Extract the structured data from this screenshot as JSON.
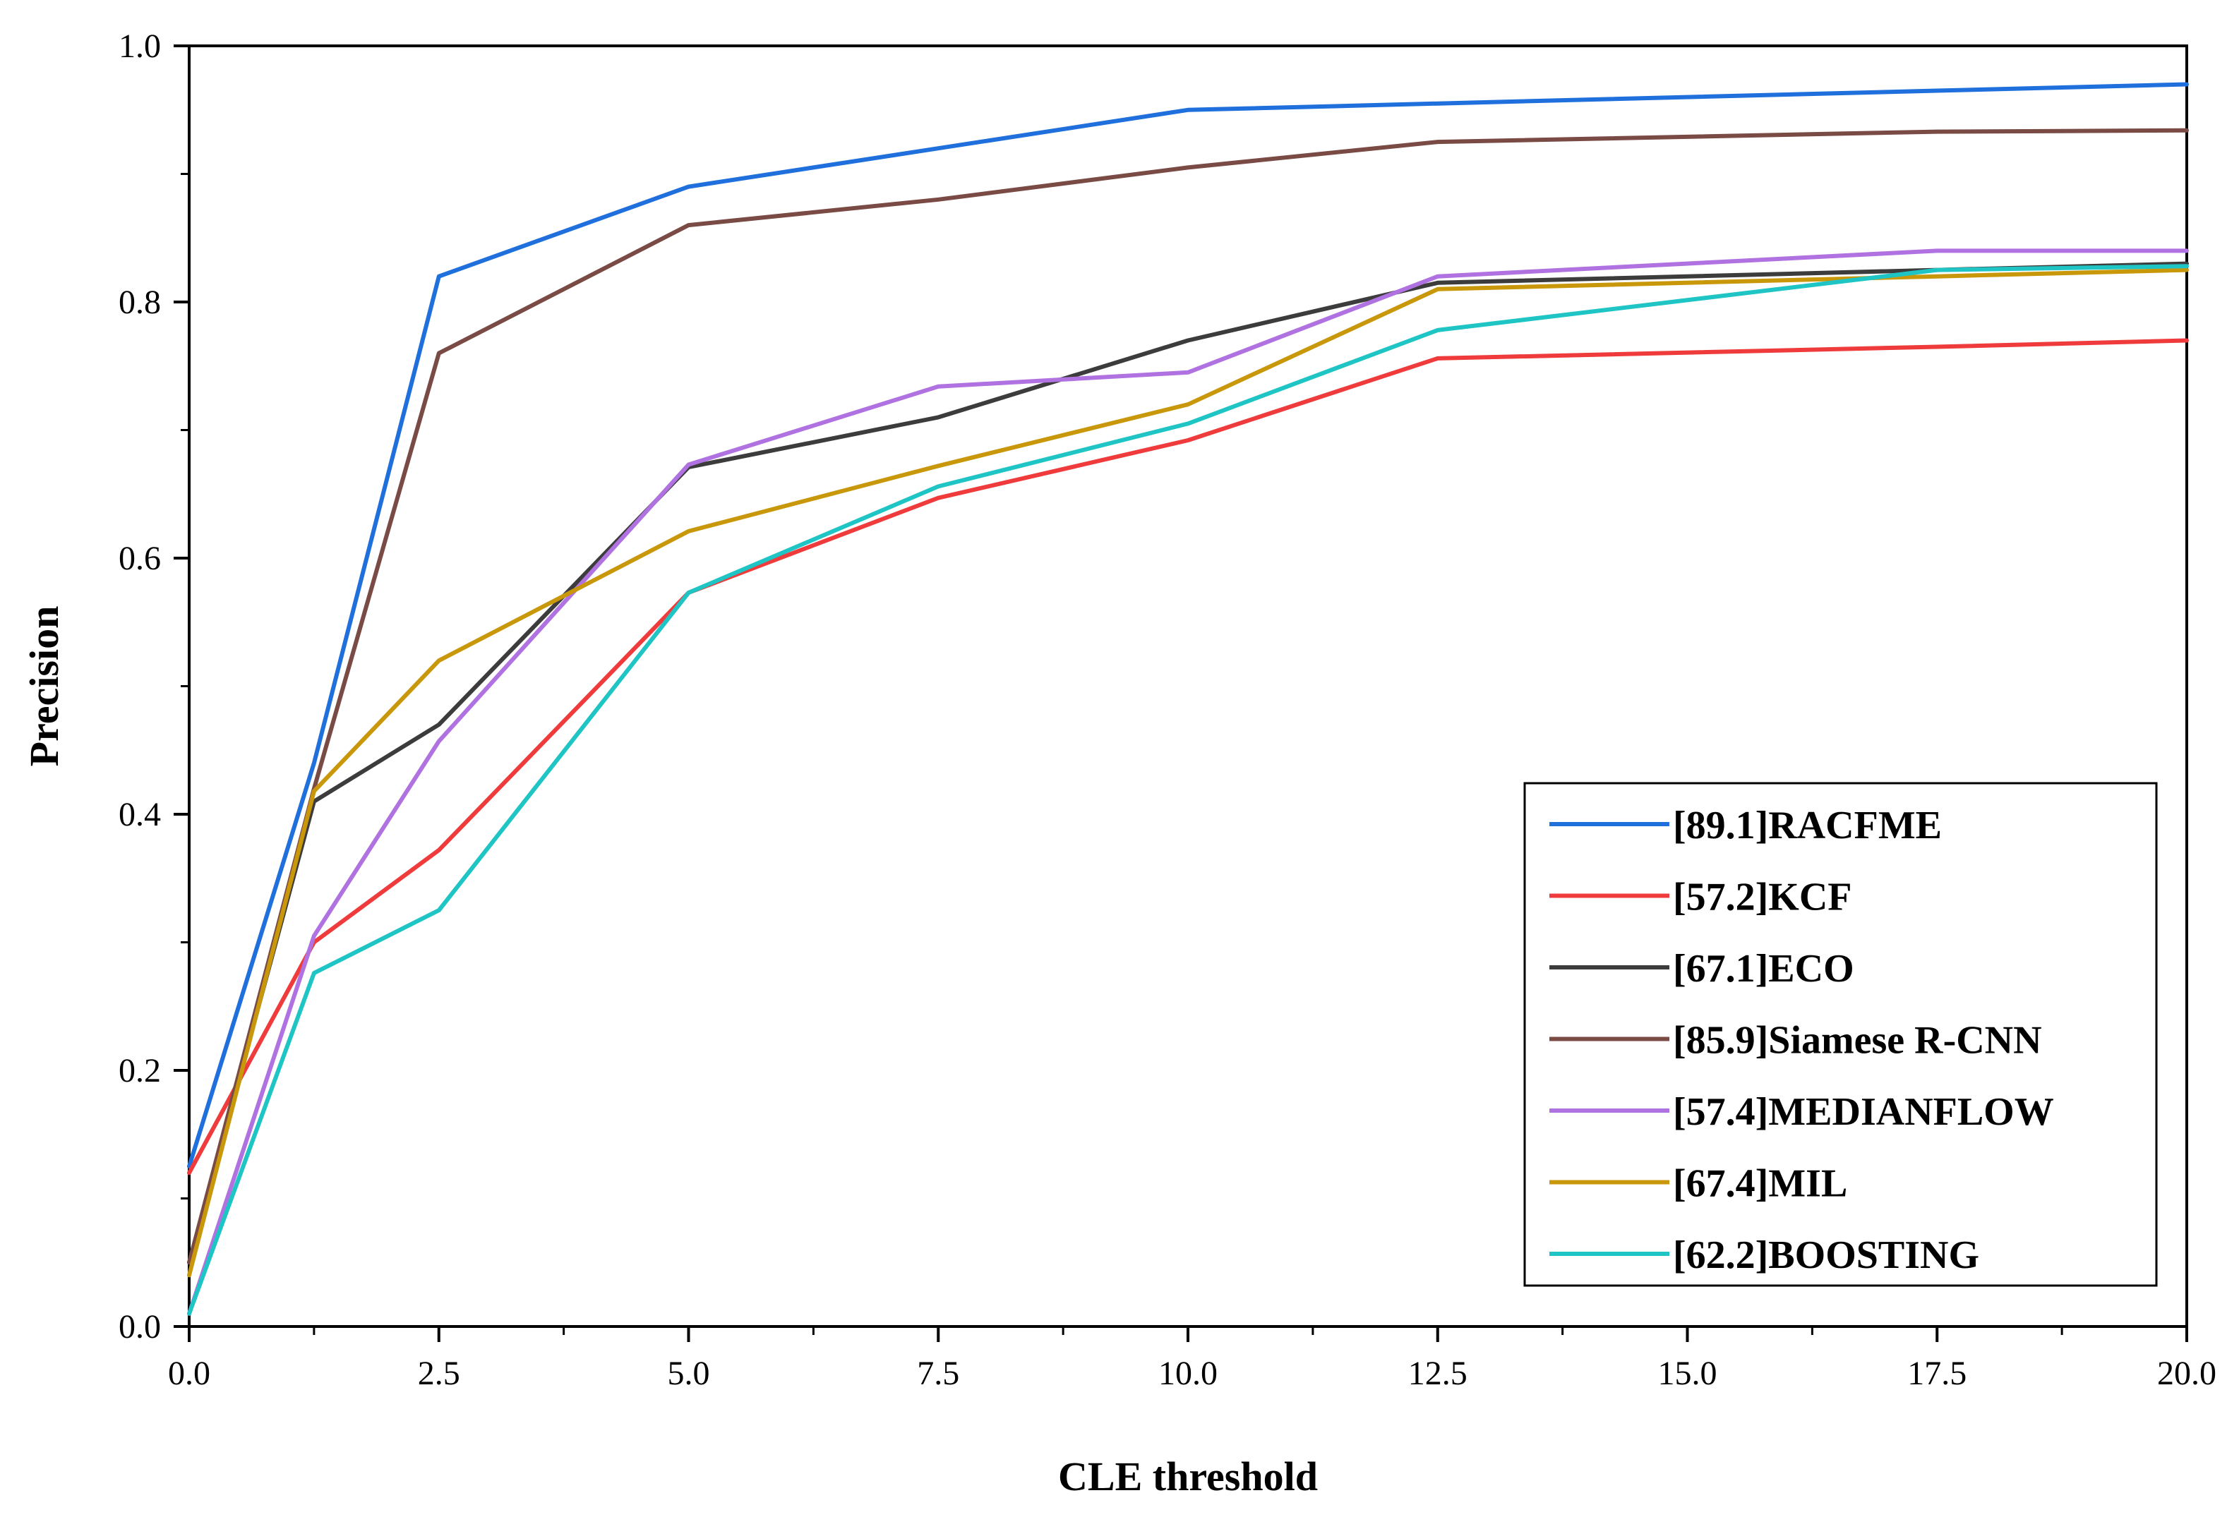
{
  "chart_data": {
    "type": "line",
    "title": "",
    "xlabel": "CLE threshold",
    "ylabel": "Precision",
    "xlim": [
      0,
      20
    ],
    "ylim": [
      0,
      1
    ],
    "xticks": [
      0,
      2.5,
      5,
      7.5,
      10,
      12.5,
      15,
      17.5,
      20
    ],
    "xtick_labels": [
      "0.0",
      "2.5",
      "5.0",
      "7.5",
      "10.0",
      "12.5",
      "15.0",
      "17.5",
      "20.0"
    ],
    "yticks": [
      0,
      0.2,
      0.4,
      0.6,
      0.8,
      1.0
    ],
    "ytick_labels": [
      "0.0",
      "0.2",
      "0.4",
      "0.6",
      "0.8",
      "1.0"
    ],
    "grid": false,
    "legend_position": "bottom-right",
    "x": [
      0,
      1.25,
      2.5,
      5,
      7.5,
      10,
      12.5,
      17.5,
      20
    ],
    "series": [
      {
        "name": "[89.1]RACFME",
        "color": "#1f6fdc",
        "values": [
          0.125,
          0.44,
          0.82,
          0.89,
          0.92,
          0.95,
          0.955,
          0.965,
          0.97
        ]
      },
      {
        "name": "[57.2]KCF",
        "color": "#ef3b3b",
        "values": [
          0.12,
          0.3,
          0.372,
          0.573,
          0.647,
          0.692,
          0.756,
          0.765,
          0.77
        ]
      },
      {
        "name": "[67.1]ECO",
        "color": "#3c3c3c",
        "values": [
          0.05,
          0.41,
          0.47,
          0.671,
          0.71,
          0.77,
          0.815,
          0.825,
          0.83
        ]
      },
      {
        "name": "[85.9]Siamese R-CNN",
        "color": "#7a4a45",
        "values": [
          0.05,
          0.42,
          0.76,
          0.86,
          0.88,
          0.905,
          0.925,
          0.933,
          0.934
        ]
      },
      {
        "name": "[57.4]MEDIANFLOW",
        "color": "#b072e0",
        "values": [
          0.01,
          0.305,
          0.457,
          0.673,
          0.734,
          0.745,
          0.82,
          0.84,
          0.84
        ]
      },
      {
        "name": "[67.4]MIL",
        "color": "#c9970a",
        "values": [
          0.04,
          0.418,
          0.52,
          0.621,
          0.672,
          0.72,
          0.81,
          0.82,
          0.825
        ]
      },
      {
        "name": "[62.2]BOOSTING",
        "color": "#1fc4c4",
        "values": [
          0.01,
          0.276,
          0.325,
          0.573,
          0.656,
          0.705,
          0.778,
          0.825,
          0.828
        ]
      }
    ]
  }
}
